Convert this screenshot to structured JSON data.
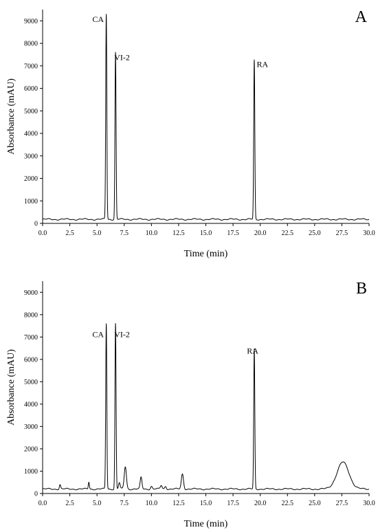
{
  "chart_data": [
    {
      "type": "line",
      "panel_label": "A",
      "xlabel": "Time (min)",
      "ylabel": "Absorbance (mAU)",
      "xlim": [
        0,
        30
      ],
      "ylim": [
        0,
        9500
      ],
      "xticks": [
        0.0,
        2.5,
        5.0,
        7.5,
        10.0,
        12.5,
        15.0,
        17.5,
        20.0,
        22.5,
        25.0,
        27.5,
        30.0
      ],
      "yticks": [
        0,
        1000,
        2000,
        3000,
        4000,
        5000,
        6000,
        7000,
        8000,
        9000
      ],
      "grid": false,
      "baseline": 180,
      "peaks": [
        {
          "label": "CA",
          "time": 5.85,
          "height": 9300,
          "width": 0.05
        },
        {
          "label": "VI-2",
          "time": 6.7,
          "height": 7600,
          "width": 0.05
        },
        {
          "label": "RA",
          "time": 19.45,
          "height": 7250,
          "width": 0.05
        }
      ],
      "minor_peaks": [],
      "annotations": [
        {
          "text": "CA",
          "x": 5.1,
          "y": 8950
        },
        {
          "text": "VI-2",
          "x": 7.3,
          "y": 7250
        },
        {
          "text": "RA",
          "x": 20.2,
          "y": 6950
        }
      ]
    },
    {
      "type": "line",
      "panel_label": "B",
      "xlabel": "Time (min)",
      "ylabel": "Absorbance (mAU)",
      "xlim": [
        0,
        30
      ],
      "ylim": [
        0,
        9500
      ],
      "xticks": [
        0.0,
        2.5,
        5.0,
        7.5,
        10.0,
        12.5,
        15.0,
        17.5,
        20.0,
        22.5,
        25.0,
        27.5,
        30.0
      ],
      "yticks": [
        0,
        1000,
        2000,
        3000,
        4000,
        5000,
        6000,
        7000,
        8000,
        9000
      ],
      "grid": false,
      "baseline": 200,
      "peaks": [
        {
          "label": "CA",
          "time": 5.85,
          "height": 7600,
          "width": 0.05
        },
        {
          "label": "VI-2",
          "time": 6.7,
          "height": 7600,
          "width": 0.05
        },
        {
          "label": "RA",
          "time": 19.45,
          "height": 6450,
          "width": 0.05
        }
      ],
      "minor_peaks": [
        {
          "time": 1.6,
          "height": 400,
          "width": 0.06
        },
        {
          "time": 4.25,
          "height": 520,
          "width": 0.05
        },
        {
          "time": 7.05,
          "height": 480,
          "width": 0.07
        },
        {
          "time": 7.6,
          "height": 1200,
          "width": 0.1
        },
        {
          "time": 9.05,
          "height": 720,
          "width": 0.08
        },
        {
          "time": 10.0,
          "height": 320,
          "width": 0.08
        },
        {
          "time": 10.9,
          "height": 360,
          "width": 0.08
        },
        {
          "time": 11.3,
          "height": 330,
          "width": 0.08
        },
        {
          "time": 12.85,
          "height": 870,
          "width": 0.1
        },
        {
          "time": 27.6,
          "height": 1400,
          "width": 0.55
        }
      ],
      "annotations": [
        {
          "text": "CA",
          "x": 5.1,
          "y": 7000
        },
        {
          "text": "VI-2",
          "x": 7.3,
          "y": 7000
        },
        {
          "text": "RA",
          "x": 19.3,
          "y": 6250
        }
      ]
    }
  ]
}
